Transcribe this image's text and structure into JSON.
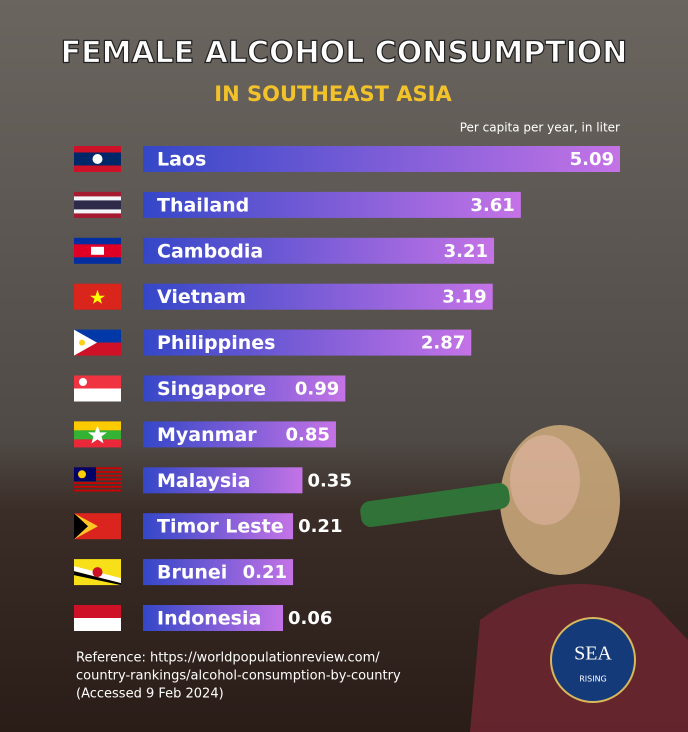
{
  "chart_data": {
    "type": "bar",
    "orientation": "horizontal",
    "title": "FEMALE ALCOHOL CONSUMPTION",
    "subtitle": "IN SOUTHEAST ASIA",
    "unit_note": "Per capita per year, in liter",
    "categories": [
      "Laos",
      "Thailand",
      "Cambodia",
      "Vietnam",
      "Philippines",
      "Singapore",
      "Myanmar",
      "Malaysia",
      "Timor Leste",
      "Brunei",
      "Indonesia"
    ],
    "values": [
      5.09,
      3.61,
      3.21,
      3.19,
      2.87,
      0.99,
      0.85,
      0.35,
      0.21,
      0.21,
      0.06
    ],
    "color": "#6a55e0",
    "reference": [
      "Reference: https://worldpopulationreview.com/",
      "country-rankings/alcohol-consumption-by-country",
      "(Accessed 9 Feb 2024)"
    ],
    "logo": {
      "name": "SEA",
      "tagline": "RISING"
    }
  }
}
